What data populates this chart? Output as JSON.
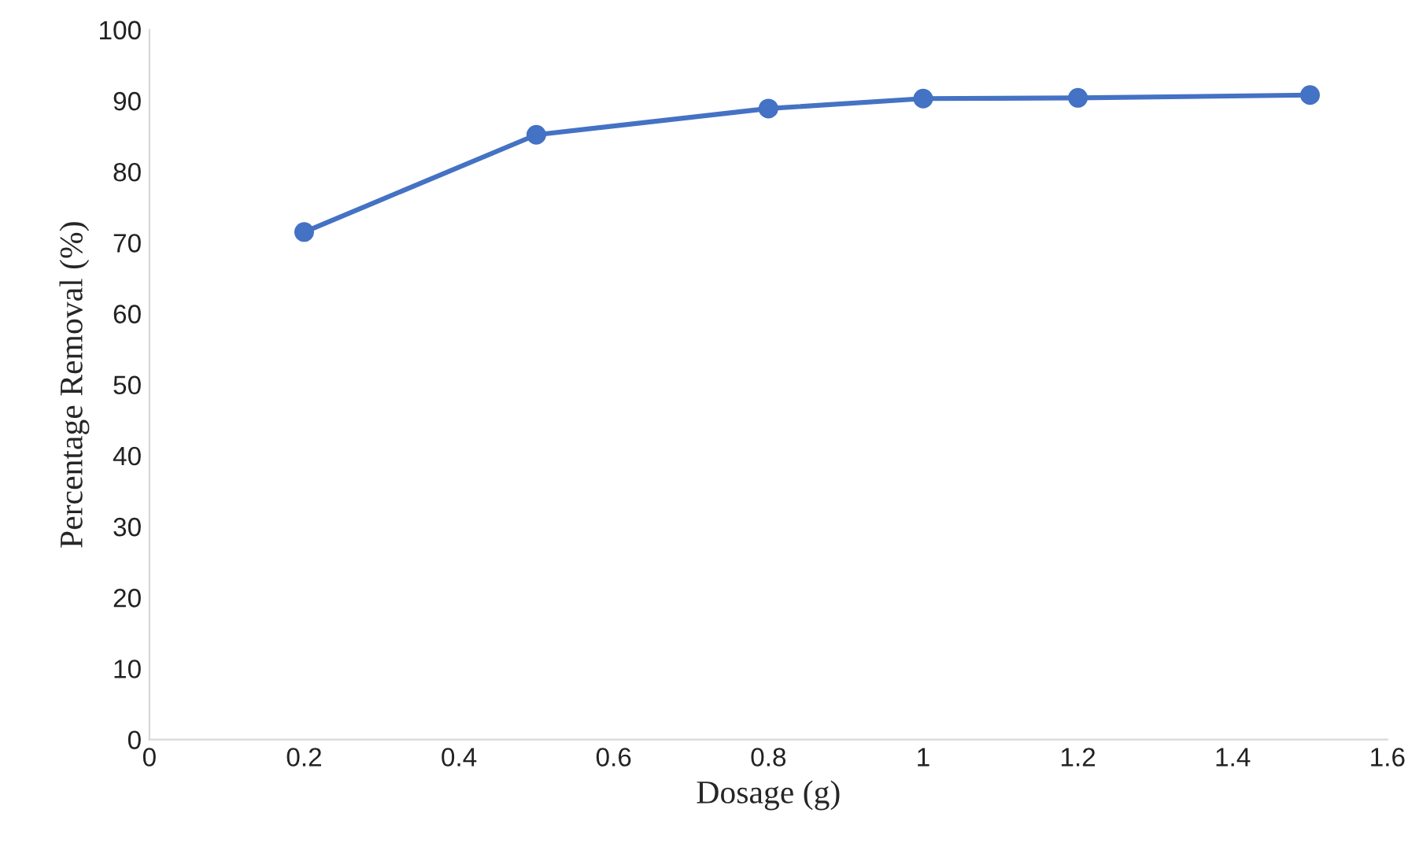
{
  "chart_data": {
    "type": "line",
    "xlabel": "Dosage (g)",
    "ylabel": "Percentage Removal (%)",
    "x": [
      0.2,
      0.5,
      0.8,
      1,
      1.2,
      1.5
    ],
    "series": [
      {
        "color": "#4472c4",
        "values": [
          71.5,
          85.2,
          88.9,
          90.3,
          90.4,
          90.8
        ]
      }
    ],
    "xlim": [
      0,
      1.6
    ],
    "xticks": [
      0,
      0.2,
      0.4,
      0.6,
      0.8,
      1,
      1.2,
      1.4,
      1.6
    ],
    "ylim": [
      0,
      100
    ],
    "yticks": [
      0,
      10,
      20,
      30,
      40,
      50,
      60,
      70,
      80,
      90,
      100
    ],
    "grid": false,
    "marker": "circle",
    "line_style": "solid"
  }
}
